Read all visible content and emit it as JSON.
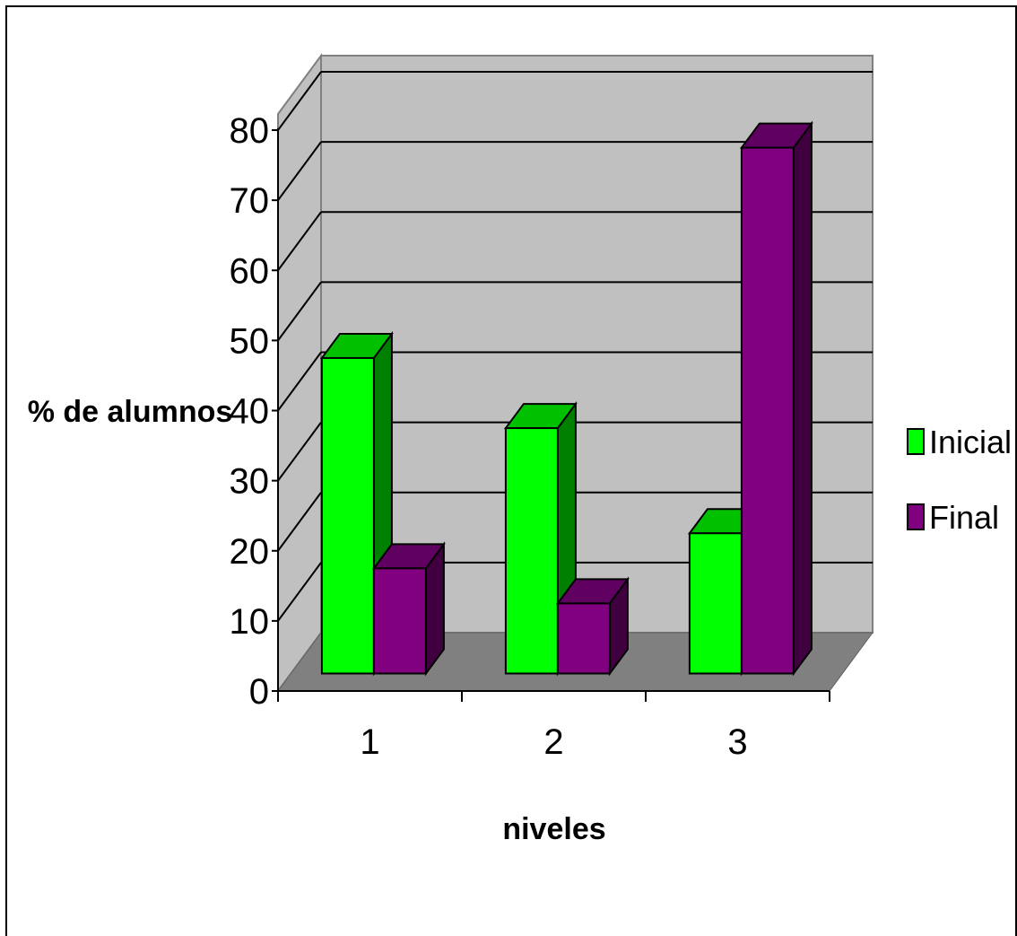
{
  "chart_data": {
    "type": "bar",
    "title": "",
    "xlabel": "niveles",
    "ylabel": "% de alumnos",
    "categories": [
      "1",
      "2",
      "3"
    ],
    "series": [
      {
        "name": "Inicial",
        "values": [
          45,
          35,
          20
        ],
        "color": "#00ff00",
        "side_color": "#008000",
        "top_color": "#00c000"
      },
      {
        "name": "Final",
        "values": [
          15,
          10,
          75
        ],
        "color": "#800080",
        "side_color": "#400040",
        "top_color": "#600060"
      }
    ],
    "ylim": [
      0,
      80
    ],
    "yticks": [
      0,
      10,
      20,
      30,
      40,
      50,
      60,
      70,
      80
    ],
    "grid": true,
    "legend": "right",
    "wall_color": "#c0c0c0",
    "floor_color": "#808080"
  }
}
